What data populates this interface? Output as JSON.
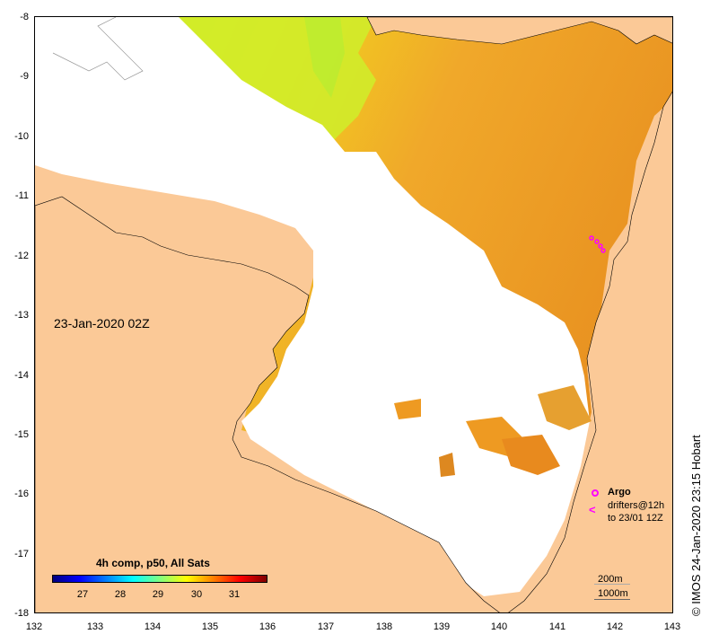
{
  "map": {
    "date_label": "23-Jan-2020 02Z",
    "credit": "© IMOS 24-Jan-2020 23:15 Hobart",
    "lat_ticks": [
      "-8",
      "-9",
      "-10",
      "-11",
      "-12",
      "-13",
      "-14",
      "-15",
      "-16",
      "-17",
      "-18"
    ],
    "lon_ticks": [
      "132",
      "133",
      "134",
      "135",
      "136",
      "137",
      "138",
      "139",
      "140",
      "141",
      "142",
      "143"
    ],
    "lat_range": [
      -18,
      -8
    ],
    "lon_range": [
      132,
      143
    ]
  },
  "colorbar": {
    "title": "4h comp, p50, All Sats",
    "ticks": [
      "27",
      "28",
      "29",
      "30",
      "31"
    ],
    "colors": [
      "#00007f",
      "#0000ff",
      "#0080ff",
      "#00ffff",
      "#80ff80",
      "#ffff00",
      "#ff8000",
      "#ff0000",
      "#7f0000"
    ]
  },
  "legend": {
    "argo": "Argo",
    "drifters_line1": "drifters@12h",
    "drifters_line2": "to 23/01 12Z",
    "drifter_symbol": "<",
    "contour_200": "200m",
    "contour_1000": "1000m"
  },
  "colors": {
    "land": "#fbc997",
    "sst_cool": "#c8f020",
    "sst_warm": "#f0a020",
    "marker": "#ff00ff"
  }
}
